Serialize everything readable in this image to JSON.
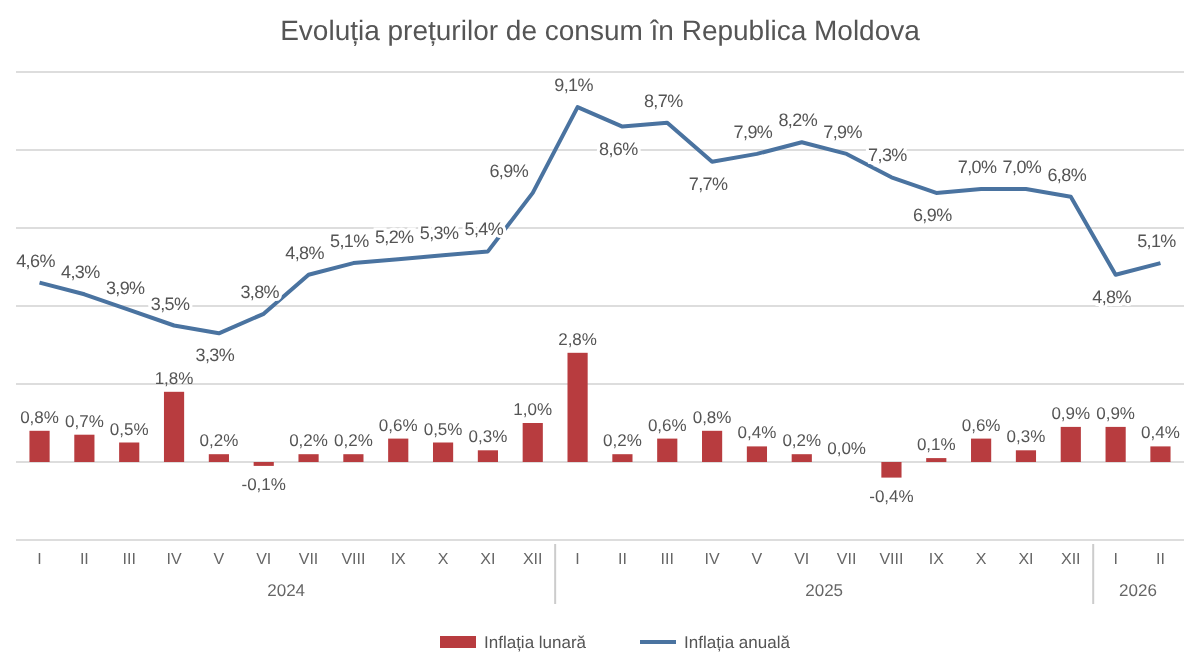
{
  "chart_data": {
    "type": "bar",
    "title": "Evoluția prețurilor de consum în Republica Moldova",
    "categories": [
      "I",
      "II",
      "III",
      "IV",
      "V",
      "VI",
      "VII",
      "VIII",
      "IX",
      "X",
      "XI",
      "XII",
      "I",
      "II",
      "III",
      "IV",
      "V",
      "VI",
      "VII",
      "VIII",
      "IX",
      "X",
      "XI",
      "XII",
      "I",
      "II"
    ],
    "annotations": [
      "2024",
      "2025",
      "2026"
    ],
    "series": [
      {
        "name": "Inflația lunară",
        "color": "#b83c3f",
        "values": [
          0.8,
          0.7,
          0.5,
          1.8,
          0.2,
          -0.1,
          0.2,
          0.2,
          0.6,
          0.5,
          0.3,
          1.0,
          2.8,
          0.2,
          0.6,
          0.8,
          0.4,
          0.2,
          0.0,
          -0.4,
          0.1,
          0.6,
          0.3,
          0.9,
          0.9,
          0.4
        ],
        "value_labels": [
          "0,8%",
          "0,7%",
          "0,5%",
          "1,8%",
          "0,2%",
          "-0,1%",
          "0,2%",
          "0,2%",
          "0,6%",
          "0,5%",
          "0,3%",
          "1,0%",
          "2,8%",
          "0,2%",
          "0,6%",
          "0,8%",
          "0,4%",
          "0,2%",
          "0,0%",
          "-0,4%",
          "0,1%",
          "0,6%",
          "0,3%",
          "0,9%",
          "0,9%",
          "0,4%"
        ]
      },
      {
        "name": "Inflația anuală",
        "type": "line",
        "color": "#4a73a0",
        "values": [
          4.6,
          4.3,
          3.9,
          3.5,
          3.3,
          3.8,
          4.8,
          5.1,
          5.2,
          5.3,
          5.4,
          6.9,
          9.1,
          8.6,
          8.7,
          7.7,
          7.9,
          8.2,
          7.9,
          7.3,
          6.9,
          7.0,
          7.0,
          6.8,
          4.8,
          5.1
        ],
        "value_labels": [
          "4,6%",
          "4,3%",
          "3,9%",
          "3,5%",
          "3,3%",
          "3,8%",
          "4,8%",
          "5,1%",
          "5,2%",
          "5,3%",
          "5,4%",
          "6,9%",
          "9,1%",
          "8,6%",
          "8,7%",
          "7,7%",
          "7,9%",
          "8,2%",
          "7,9%",
          "7,3%",
          "6,9%",
          "7,0%",
          "7,0%",
          "6,8%",
          "4,8%",
          "5,1%"
        ]
      }
    ],
    "ylim": [
      -2,
      10
    ],
    "yticks": [
      -2,
      0,
      2,
      4,
      6,
      8,
      10
    ],
    "grid": "y",
    "tick_labels": "x",
    "legend": "bottom",
    "marker": "none",
    "line_style": "solid"
  }
}
